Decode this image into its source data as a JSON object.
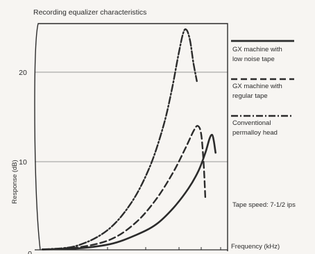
{
  "chart_data": {
    "type": "line",
    "title": "Recording equalizer characteristics",
    "xlabel": "Frequency (kHz)",
    "ylabel": "Response (dB)",
    "ylim": [
      0,
      26
    ],
    "x_scale": "log",
    "x_ticks_unlabeled": true,
    "grid": "horizontal lines at 10 and 20 dB",
    "yticks": [
      "0",
      "10",
      "20"
    ],
    "legend_position": "right",
    "note": "Tape speed: 7-1/2 ips",
    "series": [
      {
        "name": "GX machine with low noise tape",
        "style": "solid",
        "points": [
          [
            0,
            0.2
          ],
          [
            0.2,
            0.3
          ],
          [
            0.4,
            0.8
          ],
          [
            0.55,
            1.8
          ],
          [
            0.67,
            3.0
          ],
          [
            0.77,
            4.8
          ],
          [
            0.86,
            7.0
          ],
          [
            0.92,
            9.0
          ],
          [
            0.96,
            11.0
          ],
          [
            0.985,
            12.6
          ],
          [
            1.0,
            13.0
          ],
          [
            1.01,
            12.3
          ],
          [
            1.02,
            11.0
          ]
        ]
      },
      {
        "name": "GX machine with regular tape",
        "style": "dashed",
        "points": [
          [
            0,
            0.2
          ],
          [
            0.2,
            0.4
          ],
          [
            0.4,
            1.3
          ],
          [
            0.55,
            3.2
          ],
          [
            0.67,
            5.8
          ],
          [
            0.77,
            8.8
          ],
          [
            0.84,
            11.4
          ],
          [
            0.89,
            13.4
          ],
          [
            0.915,
            14.0
          ],
          [
            0.935,
            13.1
          ],
          [
            0.95,
            9.8
          ],
          [
            0.96,
            5.8
          ]
        ]
      },
      {
        "name": "Conventional permalloy head",
        "style": "dash-dot",
        "points": [
          [
            0,
            0.2
          ],
          [
            0.2,
            0.6
          ],
          [
            0.38,
            2.3
          ],
          [
            0.52,
            5.3
          ],
          [
            0.63,
            9.3
          ],
          [
            0.71,
            13.8
          ],
          [
            0.76,
            17.8
          ],
          [
            0.8,
            21.8
          ],
          [
            0.83,
            24.4
          ],
          [
            0.85,
            24.7
          ],
          [
            0.87,
            23.5
          ],
          [
            0.89,
            21.0
          ],
          [
            0.91,
            19.0
          ]
        ]
      }
    ]
  }
}
